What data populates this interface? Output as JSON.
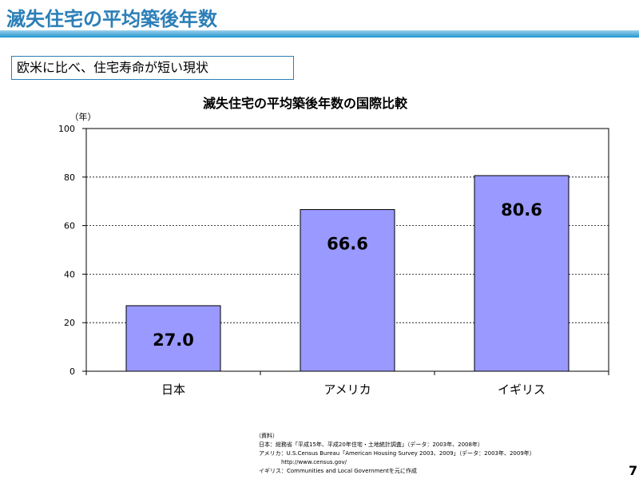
{
  "slide": {
    "title": "滅失住宅の平均築後年数",
    "subtitle": "欧米に比べ、住宅寿命が短い現状",
    "page_number": "7"
  },
  "chart_data": {
    "type": "bar",
    "title": "滅失住宅の平均築後年数の国際比較",
    "ylabel": "（年）",
    "xlabel": "",
    "categories": [
      "日本",
      "アメリカ",
      "イギリス"
    ],
    "values": [
      27.0,
      66.6,
      80.6
    ],
    "value_labels": [
      "27.0",
      "66.6",
      "80.6"
    ],
    "ylim": [
      0,
      100
    ],
    "yticks": [
      "0",
      "20",
      "40",
      "60",
      "80",
      "100"
    ],
    "grid": true,
    "legend": "none",
    "bar_color": "#9999ff"
  },
  "sources": {
    "header": "（資料）",
    "lines": [
      "日本：総務省「平成15年、平成20年住宅・土地統計調査」（データ：2003年、2008年）",
      "アメリカ：U.S.Census Bureau「American Housing Survey 2003、2009」（データ：2003年、2009年）",
      "　　　　http://www.census.gov/",
      "イギリス：Communities and Local Governmentを元に作成"
    ]
  }
}
